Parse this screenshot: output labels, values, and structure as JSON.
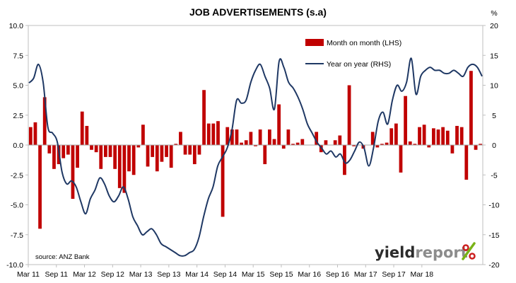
{
  "chart_data": {
    "type": "bar+line",
    "title": "JOB ADVERTISEMENTS (s.a)",
    "left_axis": {
      "range": [
        -10,
        10
      ],
      "ticks": [
        "10.0",
        "7.5",
        "5.0",
        "2.5",
        "0.0",
        "-2.5",
        "-5.0",
        "-7.5",
        "-10.0"
      ]
    },
    "right_axis": {
      "unit_label": "%",
      "range": [
        -20,
        20
      ],
      "ticks": [
        "20",
        "15",
        "10",
        "5",
        "0",
        "-5",
        "-10",
        "-15",
        "-20"
      ]
    },
    "x_ticks": [
      "Mar 11",
      "Sep 11",
      "Mar 12",
      "Sep 12",
      "Mar 13",
      "Sep 13",
      "Mar 14",
      "Sep 14",
      "Mar 15",
      "Sep 15",
      "Mar 16",
      "Sep 16",
      "Mar 17",
      "Sep 17",
      "Mar 18"
    ],
    "legend_position": "top-right",
    "source": "source: ANZ Bank",
    "brand": {
      "part1": "yield",
      "part2": "report",
      "symbol": "%"
    },
    "colors": {
      "bars": "#c00000",
      "line": "#1f3864",
      "brand_accent": "#cc1f1f",
      "brand_green": "#7ab317"
    },
    "series": [
      {
        "name": "Month on month (LHS)",
        "kind": "bar",
        "axis": "left",
        "values": [
          1.5,
          1.9,
          -7.0,
          4.0,
          -0.7,
          -2.0,
          -1.6,
          -1.1,
          -0.8,
          -4.5,
          -1.9,
          2.8,
          1.6,
          -0.4,
          -0.6,
          -2.0,
          -1.0,
          -1.0,
          -2.0,
          -3.6,
          -4.0,
          -2.2,
          -2.5,
          -0.2,
          1.7,
          -1.8,
          -1.0,
          -2.2,
          -1.4,
          -1.0,
          -1.9,
          0.1,
          1.1,
          -0.8,
          -0.8,
          -1.6,
          -0.8,
          4.6,
          1.8,
          1.8,
          2.0,
          -6.0,
          1.5,
          1.3,
          1.3,
          0.2,
          0.4,
          1.1,
          -0.1,
          1.3,
          -1.6,
          1.3,
          0.5,
          3.4,
          -0.3,
          1.3,
          0.1,
          0.2,
          0.5,
          0.0,
          0.0,
          1.1,
          -0.6,
          0.4,
          0.0,
          0.4,
          0.8,
          -2.5,
          5.0,
          -0.1,
          0.0,
          -0.3,
          0.0,
          1.1,
          -0.2,
          0.1,
          0.2,
          1.4,
          1.8,
          -2.3,
          4.1,
          0.3,
          0.1,
          1.5,
          1.7,
          -0.2,
          1.4,
          1.3,
          1.5,
          1.2,
          -0.7,
          1.6,
          1.5,
          -2.9,
          6.2,
          -0.4,
          0.1
        ]
      },
      {
        "name": "Year on year (RHS)",
        "kind": "line",
        "axis": "right",
        "points": [
          [
            0,
            10.4
          ],
          [
            1,
            11.2
          ],
          [
            2,
            13.5
          ],
          [
            3,
            10.5
          ],
          [
            4,
            3.0
          ],
          [
            5,
            2.0
          ],
          [
            6,
            0.5
          ],
          [
            7,
            -4.5
          ],
          [
            8,
            -6.5
          ],
          [
            9,
            -6.0
          ],
          [
            10,
            -7.0
          ],
          [
            11,
            -9.5
          ],
          [
            12,
            -11.5
          ],
          [
            13,
            -9.0
          ],
          [
            14,
            -7.5
          ],
          [
            15,
            -5.5
          ],
          [
            16,
            -6.5
          ],
          [
            17,
            -8.5
          ],
          [
            18,
            -9.5
          ],
          [
            19,
            -8.5
          ],
          [
            20,
            -7.0
          ],
          [
            21,
            -9.0
          ],
          [
            22,
            -12.0
          ],
          [
            23,
            -13.5
          ],
          [
            24,
            -15.0
          ],
          [
            25,
            -14.5
          ],
          [
            26,
            -14.0
          ],
          [
            27,
            -15.0
          ],
          [
            28,
            -16.5
          ],
          [
            29,
            -17.0
          ],
          [
            30,
            -17.5
          ],
          [
            31,
            -18.0
          ],
          [
            32,
            -18.5
          ],
          [
            33,
            -18.5
          ],
          [
            34,
            -18.0
          ],
          [
            35,
            -17.5
          ],
          [
            36,
            -15.5
          ],
          [
            37,
            -12.0
          ],
          [
            38,
            -9.0
          ],
          [
            39,
            -7.0
          ],
          [
            40,
            -3.5
          ],
          [
            41,
            -2.0
          ],
          [
            42,
            -0.5
          ],
          [
            43,
            2.5
          ],
          [
            44,
            7.5
          ],
          [
            45,
            7.0
          ],
          [
            46,
            7.5
          ],
          [
            47,
            10.5
          ],
          [
            48,
            12.5
          ],
          [
            49,
            13.5
          ],
          [
            50,
            11.5
          ],
          [
            51,
            9.5
          ],
          [
            52,
            6.0
          ],
          [
            53,
            14.0
          ],
          [
            54,
            13.0
          ],
          [
            55,
            10.5
          ],
          [
            56,
            9.5
          ],
          [
            57,
            8.0
          ],
          [
            58,
            6.0
          ],
          [
            59,
            3.5
          ],
          [
            60,
            2.0
          ],
          [
            61,
            0.5
          ],
          [
            62,
            -0.5
          ],
          [
            63,
            -1.5
          ],
          [
            64,
            -1.0
          ],
          [
            65,
            -2.0
          ],
          [
            66,
            -1.5
          ],
          [
            67,
            -3.0
          ],
          [
            68,
            -2.5
          ],
          [
            69,
            -1.0
          ],
          [
            70,
            0.5
          ],
          [
            71,
            -0.5
          ],
          [
            72,
            -3.5
          ],
          [
            73,
            -0.5
          ],
          [
            74,
            4.0
          ],
          [
            75,
            5.5
          ],
          [
            76,
            3.5
          ],
          [
            77,
            7.5
          ],
          [
            78,
            10.0
          ],
          [
            79,
            9.0
          ],
          [
            80,
            10.5
          ],
          [
            81,
            14.5
          ],
          [
            82,
            8.5
          ],
          [
            83,
            11.5
          ],
          [
            84,
            12.5
          ],
          [
            85,
            13.0
          ],
          [
            86,
            12.5
          ],
          [
            87,
            12.5
          ],
          [
            88,
            12.0
          ],
          [
            89,
            12.0
          ],
          [
            90,
            12.5
          ],
          [
            91,
            12.0
          ],
          [
            92,
            11.5
          ],
          [
            93,
            13.0
          ],
          [
            94,
            13.5
          ],
          [
            95,
            13.0
          ],
          [
            96,
            11.5
          ]
        ]
      }
    ]
  }
}
